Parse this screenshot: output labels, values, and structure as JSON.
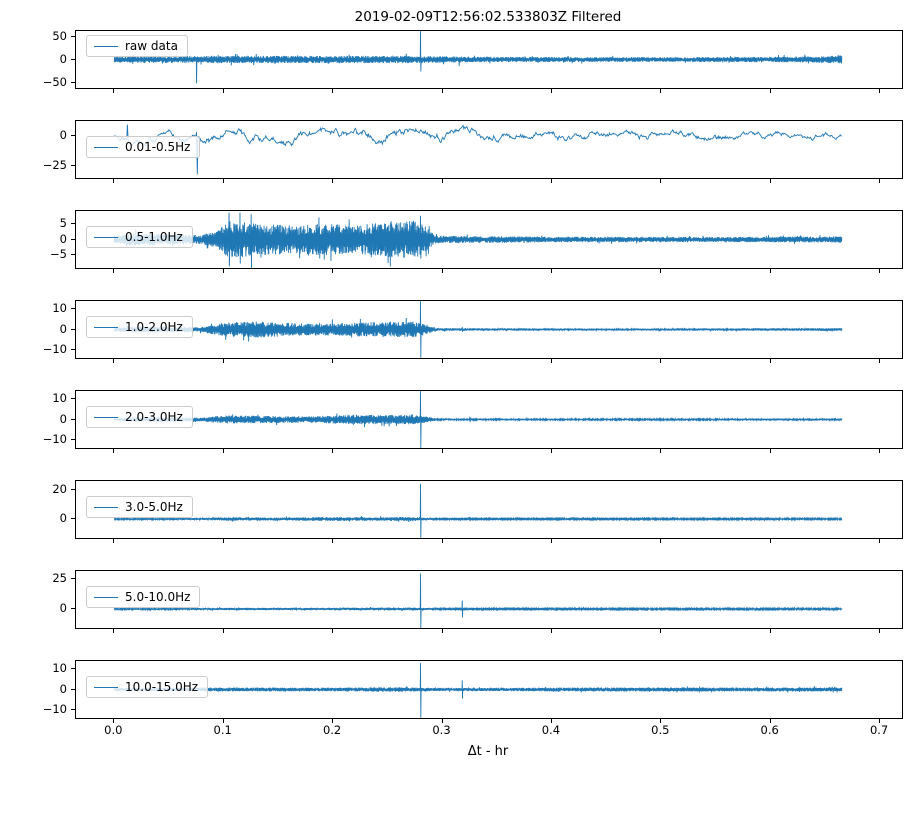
{
  "title": "2019-02-09T12:56:02.533803Z Filtered",
  "x_axis": {
    "label": "Δt - hr",
    "ticks": [
      "0.0",
      "0.1",
      "0.2",
      "0.3",
      "0.4",
      "0.5",
      "0.6",
      "0.7"
    ],
    "lim": [
      -0.035,
      0.72
    ],
    "data_range": [
      0,
      0.665
    ]
  },
  "line_color": "#1f77b4",
  "legend_border_color": "#cccccc",
  "chart_data": [
    {
      "type": "line",
      "legend": "raw data",
      "ylim": [
        -62,
        62
      ],
      "yticks": [
        50,
        0,
        -50
      ],
      "style": "band",
      "points": 2600,
      "seed": 11,
      "envelope": [
        [
          0,
          7
        ],
        [
          0.09,
          8
        ],
        [
          0.28,
          8
        ],
        [
          0.33,
          6
        ],
        [
          0.5,
          5
        ],
        [
          0.6,
          6
        ],
        [
          0.65,
          7
        ],
        [
          0.665,
          10
        ]
      ],
      "spikes": [
        [
          0.075,
          5,
          -52
        ],
        [
          0.28,
          70,
          -26
        ],
        [
          0.315,
          4,
          -14
        ]
      ],
      "legend_position": "upper-left"
    },
    {
      "type": "line",
      "legend": "0.01-0.5Hz",
      "ylim": [
        -35,
        12
      ],
      "yticks": [
        0,
        -25
      ],
      "style": "walk",
      "points": 1000,
      "seed": 22,
      "envelope": [
        [
          0,
          4
        ],
        [
          0.25,
          4.5
        ],
        [
          0.4,
          3.5
        ],
        [
          0.55,
          3
        ],
        [
          0.665,
          2.5
        ]
      ],
      "spikes": [
        [
          0.012,
          9,
          -3
        ],
        [
          0.075,
          3,
          -32
        ]
      ],
      "legend_position": "center-left"
    },
    {
      "type": "line",
      "legend": "0.5-1.0Hz",
      "ylim": [
        -9,
        9
      ],
      "yticks": [
        5,
        0,
        -5
      ],
      "style": "band",
      "points": 2600,
      "seed": 33,
      "envelope": [
        [
          0,
          1.2
        ],
        [
          0.02,
          2
        ],
        [
          0.05,
          1.6
        ],
        [
          0.08,
          1.4
        ],
        [
          0.095,
          3
        ],
        [
          0.105,
          6
        ],
        [
          0.13,
          5
        ],
        [
          0.16,
          4.5
        ],
        [
          0.19,
          5
        ],
        [
          0.22,
          4.5
        ],
        [
          0.25,
          5.5
        ],
        [
          0.275,
          6
        ],
        [
          0.285,
          4
        ],
        [
          0.295,
          1.2
        ],
        [
          0.4,
          0.9
        ],
        [
          0.55,
          0.8
        ],
        [
          0.665,
          1
        ]
      ],
      "spikes": [
        [
          0.105,
          8.5,
          -8.5
        ],
        [
          0.125,
          8,
          -9
        ],
        [
          0.28,
          7.5,
          -6
        ]
      ],
      "legend_position": "center-left"
    },
    {
      "type": "line",
      "legend": "1.0-2.0Hz",
      "ylim": [
        -14,
        14
      ],
      "yticks": [
        10,
        0,
        -10
      ],
      "style": "band",
      "points": 2600,
      "seed": 44,
      "envelope": [
        [
          0,
          1
        ],
        [
          0.03,
          1.6
        ],
        [
          0.08,
          1.2
        ],
        [
          0.1,
          3.5
        ],
        [
          0.13,
          4
        ],
        [
          0.17,
          3
        ],
        [
          0.21,
          3.2
        ],
        [
          0.25,
          3.8
        ],
        [
          0.275,
          4
        ],
        [
          0.285,
          2.5
        ],
        [
          0.295,
          0.7
        ],
        [
          0.45,
          0.5
        ],
        [
          0.665,
          0.7
        ]
      ],
      "spikes": [
        [
          0.28,
          14,
          -14
        ],
        [
          0.318,
          1.2,
          -1.2
        ]
      ],
      "legend_position": "center-left"
    },
    {
      "type": "line",
      "legend": "2.0-3.0Hz",
      "ylim": [
        -14,
        14
      ],
      "yticks": [
        10,
        0,
        -10
      ],
      "style": "band",
      "points": 2600,
      "seed": 55,
      "envelope": [
        [
          0,
          0.8
        ],
        [
          0.04,
          1.2
        ],
        [
          0.08,
          0.9
        ],
        [
          0.1,
          2
        ],
        [
          0.14,
          1.8
        ],
        [
          0.18,
          1.6
        ],
        [
          0.22,
          2.4
        ],
        [
          0.26,
          2.2
        ],
        [
          0.275,
          2.4
        ],
        [
          0.285,
          1.5
        ],
        [
          0.295,
          0.45
        ],
        [
          0.5,
          0.4
        ],
        [
          0.665,
          0.55
        ]
      ],
      "spikes": [
        [
          0.28,
          14,
          -14
        ],
        [
          0.325,
          1.3,
          -1.3
        ],
        [
          0.63,
          0.9,
          -0.9
        ]
      ],
      "legend_position": "center-left"
    },
    {
      "type": "line",
      "legend": "3.0-5.0Hz",
      "ylim": [
        -13,
        26
      ],
      "yticks": [
        20,
        0
      ],
      "style": "band",
      "points": 2600,
      "seed": 66,
      "envelope": [
        [
          0,
          0.55
        ],
        [
          0.08,
          0.7
        ],
        [
          0.1,
          1.2
        ],
        [
          0.15,
          1
        ],
        [
          0.2,
          1.4
        ],
        [
          0.24,
          1.2
        ],
        [
          0.27,
          1.4
        ],
        [
          0.285,
          1
        ],
        [
          0.295,
          0.4
        ],
        [
          0.665,
          0.5
        ]
      ],
      "spikes": [
        [
          0.28,
          24,
          -13
        ],
        [
          0.325,
          1.4,
          -1.4
        ]
      ],
      "legend_position": "center-left"
    },
    {
      "type": "line",
      "legend": "5.0-10.0Hz",
      "ylim": [
        -16,
        32
      ],
      "yticks": [
        25,
        0
      ],
      "style": "band",
      "points": 2600,
      "seed": 77,
      "envelope": [
        [
          0,
          0.7
        ],
        [
          0.08,
          0.8
        ],
        [
          0.12,
          1
        ],
        [
          0.2,
          1
        ],
        [
          0.26,
          1.3
        ],
        [
          0.285,
          1
        ],
        [
          0.295,
          0.5
        ],
        [
          0.665,
          0.6
        ]
      ],
      "spikes": [
        [
          0.28,
          30,
          -16
        ],
        [
          0.318,
          7,
          -7
        ]
      ],
      "legend_position": "center-left"
    },
    {
      "type": "line",
      "legend": "10.0-15.0Hz",
      "ylim": [
        -14,
        14
      ],
      "yticks": [
        10,
        0,
        -10
      ],
      "style": "band",
      "points": 2600,
      "seed": 88,
      "envelope": [
        [
          0,
          0.8
        ],
        [
          0.1,
          1
        ],
        [
          0.2,
          0.9
        ],
        [
          0.26,
          1.2
        ],
        [
          0.29,
          0.8
        ],
        [
          0.45,
          1
        ],
        [
          0.665,
          1
        ]
      ],
      "spikes": [
        [
          0.28,
          13,
          -14
        ],
        [
          0.318,
          4.5,
          -4.5
        ]
      ],
      "legend_position": "center-left"
    }
  ]
}
